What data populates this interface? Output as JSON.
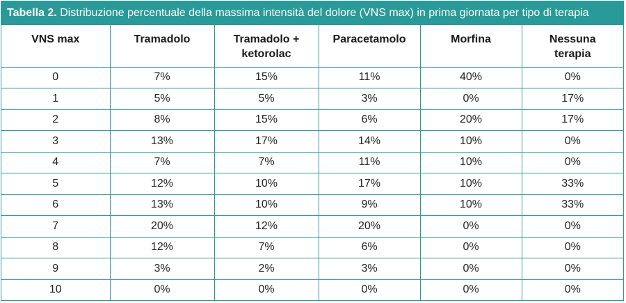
{
  "caption": {
    "label": "Tabella 2.",
    "text": "Distribuzione percentuale della massima intensità del dolore (VNS max) in prima giornata per tipo di terapia"
  },
  "columns": [
    {
      "line1": "VNS max",
      "line2": ""
    },
    {
      "line1": "Tramadolo",
      "line2": ""
    },
    {
      "line1": "Tramadolo +",
      "line2": "ketorolac"
    },
    {
      "line1": "Paracetamolo",
      "line2": ""
    },
    {
      "line1": "Morfina",
      "line2": ""
    },
    {
      "line1": "Nessuna",
      "line2": "terapia"
    }
  ],
  "rows": [
    [
      "0",
      "7%",
      "15%",
      "11%",
      "40%",
      "0%"
    ],
    [
      "1",
      "5%",
      "5%",
      "3%",
      "0%",
      "17%"
    ],
    [
      "2",
      "8%",
      "15%",
      "6%",
      "20%",
      "17%"
    ],
    [
      "3",
      "13%",
      "17%",
      "14%",
      "10%",
      "0%"
    ],
    [
      "4",
      "7%",
      "7%",
      "11%",
      "10%",
      "0%"
    ],
    [
      "5",
      "12%",
      "10%",
      "17%",
      "10%",
      "33%"
    ],
    [
      "6",
      "13%",
      "10%",
      "9%",
      "10%",
      "33%"
    ],
    [
      "7",
      "20%",
      "12%",
      "20%",
      "0%",
      "0%"
    ],
    [
      "8",
      "12%",
      "7%",
      "6%",
      "0%",
      "0%"
    ],
    [
      "9",
      "3%",
      "2%",
      "3%",
      "0%",
      "0%"
    ],
    [
      "10",
      "0%",
      "0%",
      "0%",
      "0%",
      "0%"
    ]
  ],
  "colors": {
    "accent": "#2a9a98",
    "caption_text": "#ffffff"
  }
}
